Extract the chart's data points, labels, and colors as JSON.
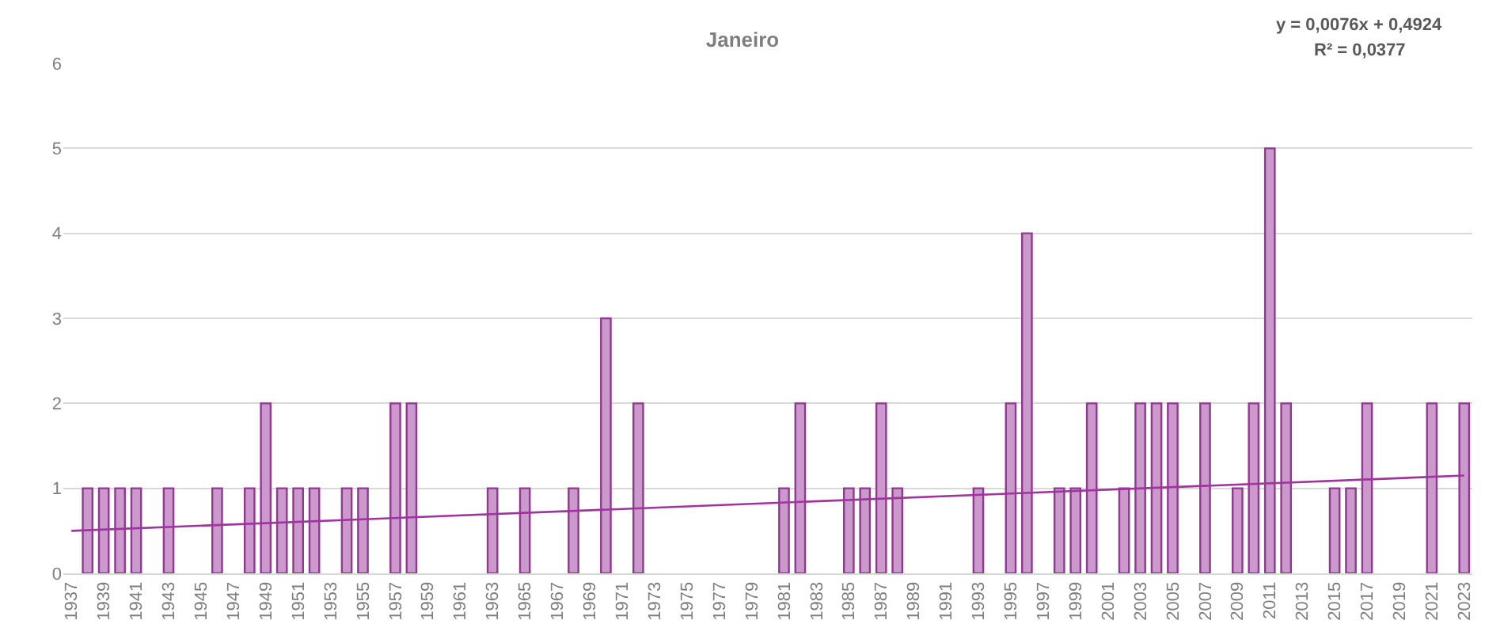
{
  "chart_data": {
    "type": "bar",
    "title": "Janeiro",
    "x": [
      1938,
      1939,
      1940,
      1941,
      1943,
      1946,
      1948,
      1949,
      1950,
      1951,
      1952,
      1954,
      1955,
      1957,
      1958,
      1963,
      1965,
      1968,
      1970,
      1972,
      1981,
      1982,
      1985,
      1986,
      1987,
      1988,
      1993,
      1995,
      1996,
      1998,
      1999,
      2000,
      2002,
      2003,
      2004,
      2005,
      2007,
      2009,
      2010,
      2011,
      2012,
      2015,
      2016,
      2017,
      2021,
      2023
    ],
    "series": [
      {
        "color": "#cc99cc",
        "values": [
          1,
          1,
          1,
          1,
          1,
          1,
          1,
          2,
          1,
          1,
          1,
          1,
          1,
          2,
          2,
          1,
          1,
          1,
          3,
          2,
          1,
          2,
          1,
          1,
          2,
          1,
          1,
          2,
          4,
          1,
          1,
          2,
          1,
          2,
          2,
          2,
          2,
          1,
          2,
          5,
          2,
          1,
          1,
          2,
          2,
          2
        ]
      },
      {
        "type": "line",
        "color": "#a0339f",
        "x": [
          1937,
          2023
        ],
        "values": [
          0.5,
          1.15
        ]
      }
    ],
    "annotations": [
      "y = 0,0076x + 0,4924",
      "R² = 0,0377"
    ],
    "xlim": [
      1936.5,
      2023.5
    ],
    "xticks": [
      1937,
      1939,
      1941,
      1943,
      1945,
      1947,
      1949,
      1951,
      1953,
      1955,
      1957,
      1959,
      1961,
      1963,
      1965,
      1967,
      1969,
      1971,
      1973,
      1975,
      1977,
      1979,
      1981,
      1983,
      1985,
      1987,
      1989,
      1991,
      1993,
      1995,
      1997,
      1999,
      2001,
      2003,
      2005,
      2007,
      2009,
      2011,
      2013,
      2015,
      2017,
      2019,
      2021,
      2023
    ],
    "ylim": [
      0,
      6
    ],
    "yticks": [
      0,
      1,
      2,
      3,
      4,
      5,
      6
    ],
    "grid": "y",
    "legend": false,
    "marker": "none",
    "line_style": "solid"
  }
}
